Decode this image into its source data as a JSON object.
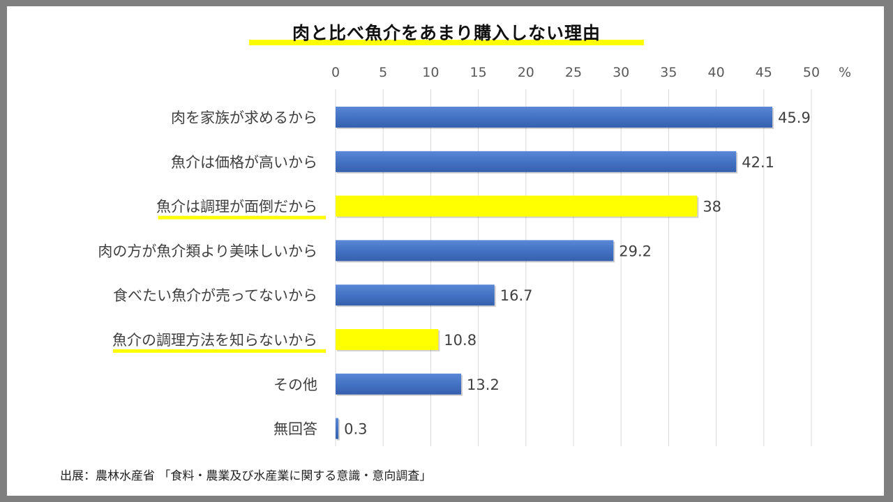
{
  "chart_data": {
    "type": "bar",
    "orientation": "horizontal",
    "title": "肉と比べ魚介をあまり購入しない理由",
    "unit": "%",
    "xlim": [
      0,
      50
    ],
    "ticks": [
      "0",
      "5",
      "10",
      "15",
      "20",
      "25",
      "30",
      "35",
      "40",
      "45",
      "50"
    ],
    "grid": true,
    "categories": [
      "肉を家族が求めるから",
      "魚介は価格が高いから",
      "魚介は調理が面倒だから",
      "肉の方が魚介類より美味しいから",
      "食べたい魚介が売ってないから",
      "魚介の調理方法を知らないから",
      "その他",
      "無回答"
    ],
    "values": [
      45.9,
      42.1,
      38,
      29.2,
      16.7,
      10.8,
      13.2,
      0.3
    ],
    "value_labels": [
      "45.9",
      "42.1",
      "38",
      "29.2",
      "16.7",
      "10.8",
      "13.2",
      "0.3"
    ],
    "highlighted": [
      false,
      false,
      true,
      false,
      false,
      true,
      false,
      false
    ],
    "bar_color": "#4472c4",
    "highlight_color": "#ffff00"
  },
  "source": "出展：農林水産省 「食料・農業及び水産業に関する意識・意向調査」"
}
